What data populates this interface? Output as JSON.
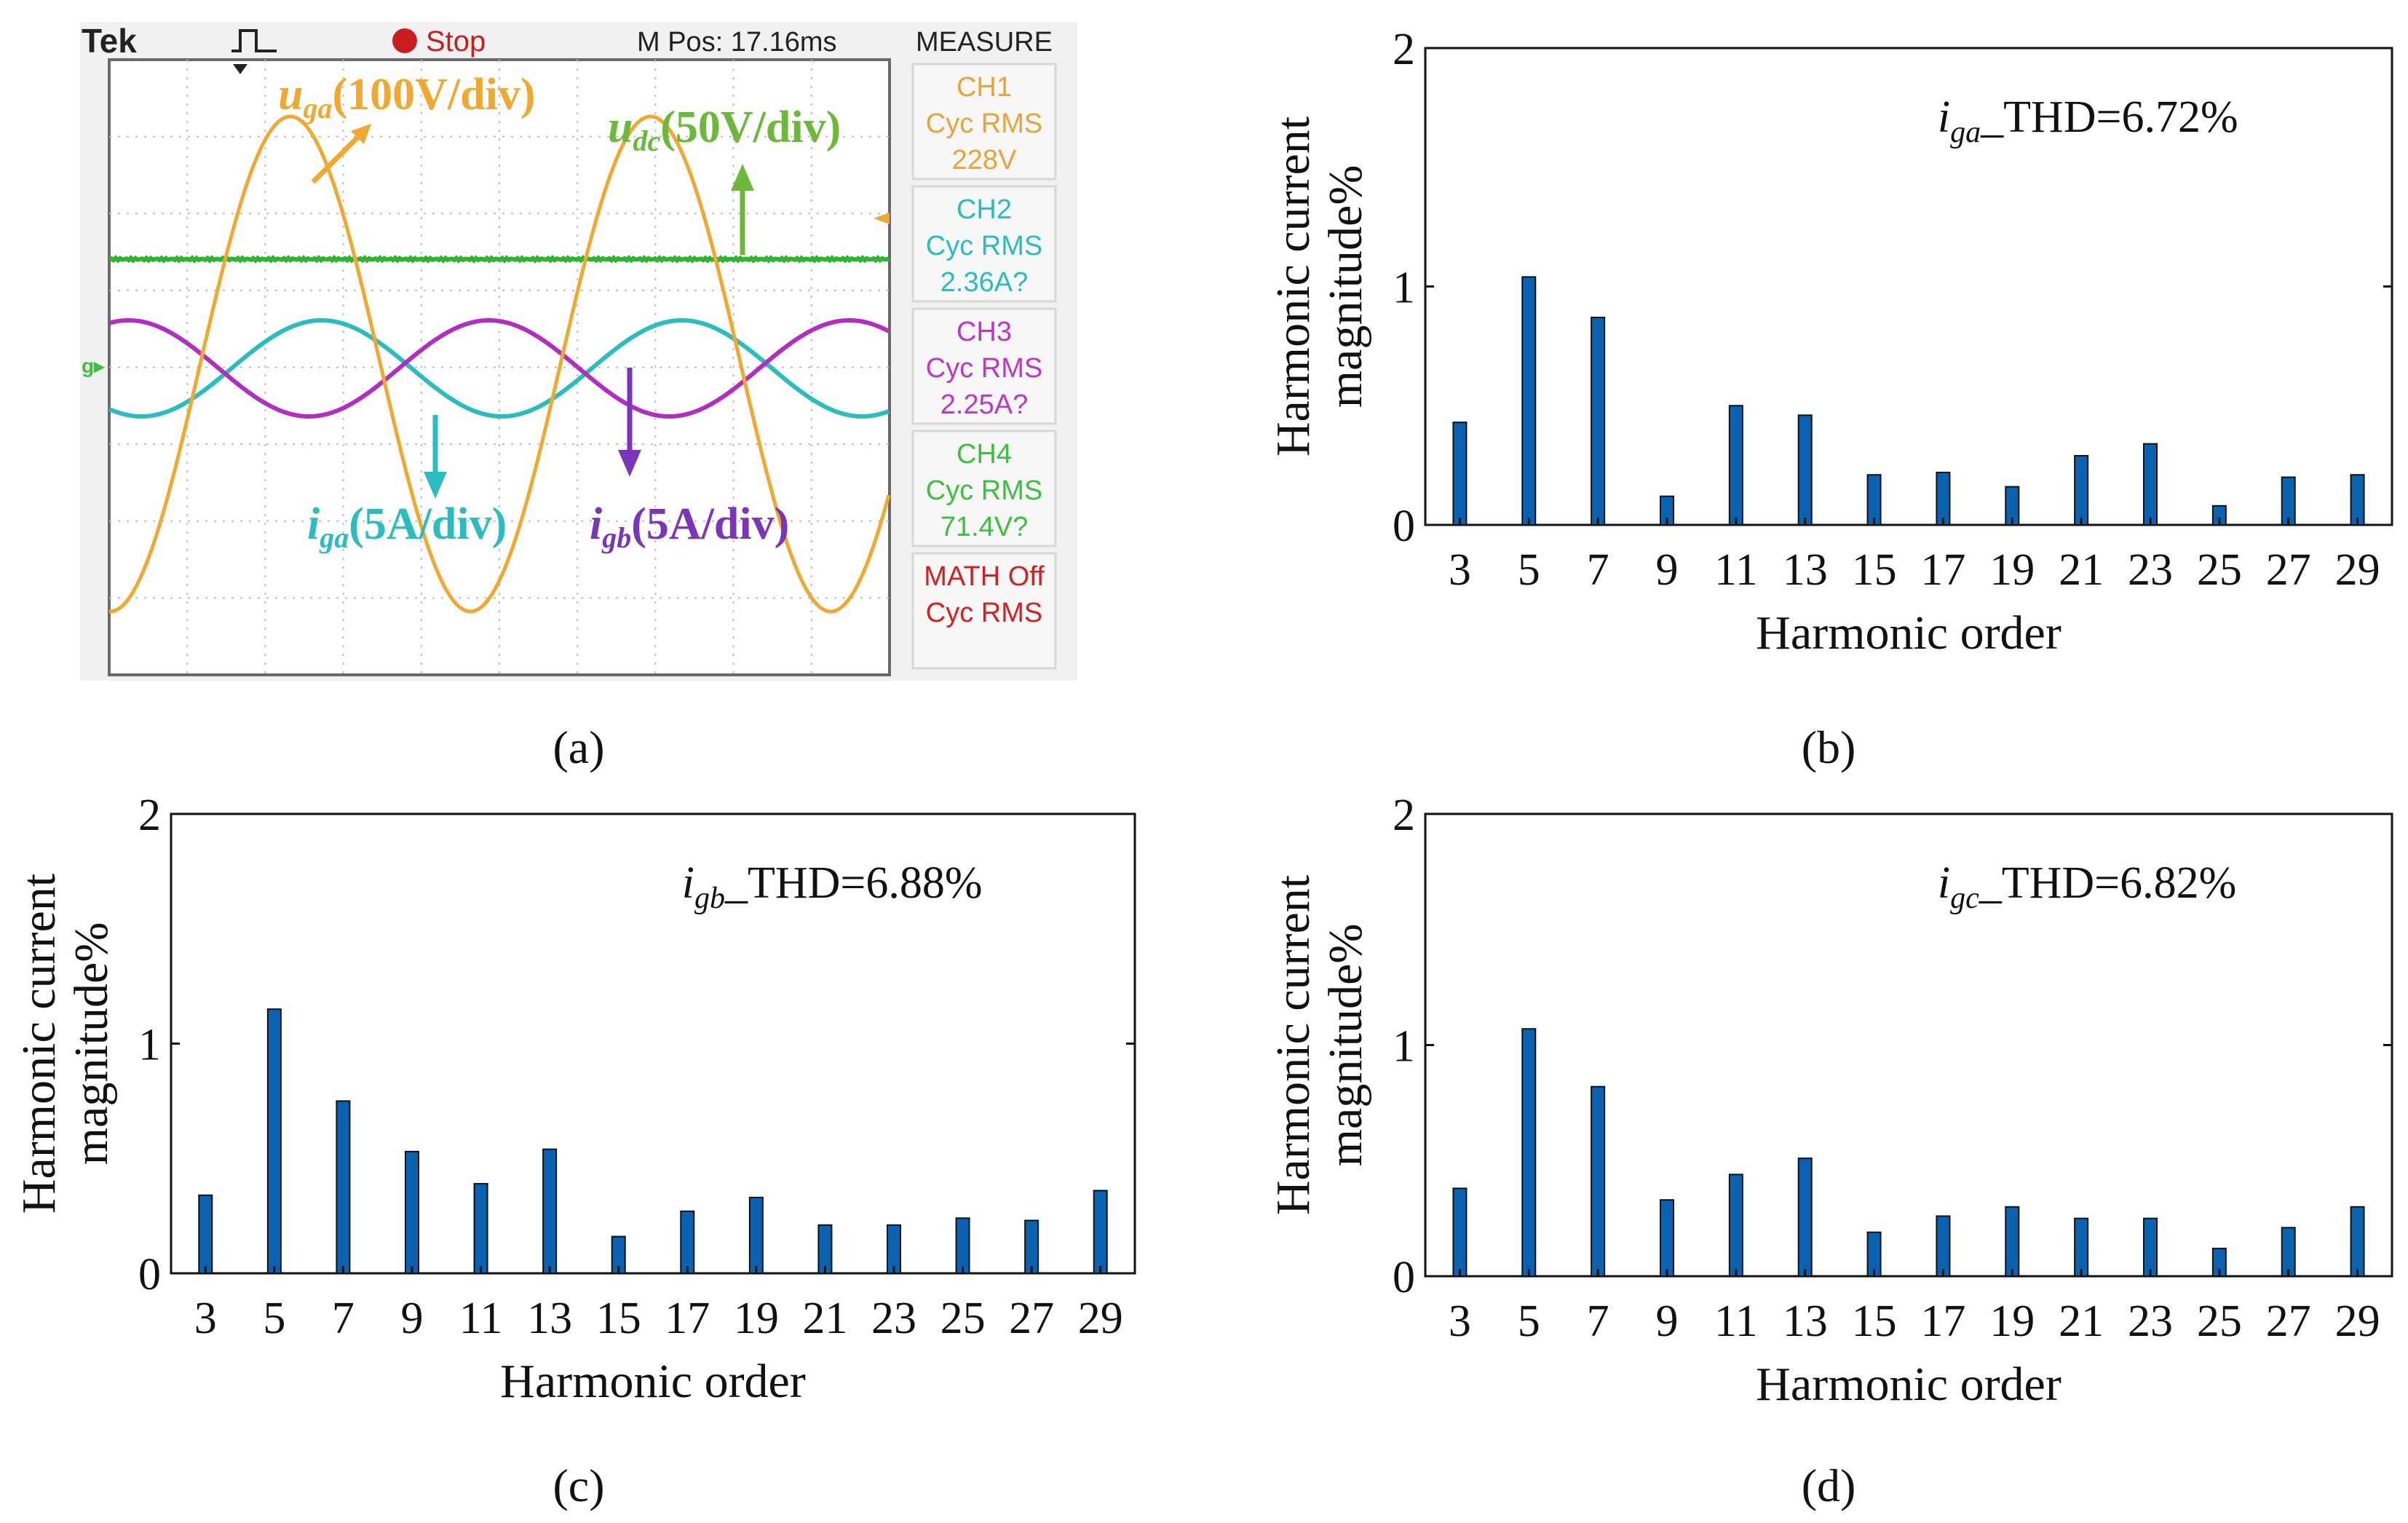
{
  "scope": {
    "brand": "Tek",
    "state": "Stop",
    "mpos": "M Pos: 17.16ms",
    "measure_title": "MEASURE",
    "measure": [
      {
        "ch": "CH1",
        "label": "Cyc RMS",
        "value": "228V",
        "color": "#e8a33a"
      },
      {
        "ch": "CH2",
        "label": "Cyc RMS",
        "value": "2.36A?",
        "color": "#2bbcc0"
      },
      {
        "ch": "CH3",
        "label": "Cyc RMS",
        "value": "2.25A?",
        "color": "#c035c8"
      },
      {
        "ch": "CH4",
        "label": "Cyc RMS",
        "value": "71.4V?",
        "color": "#3fbf3f"
      },
      {
        "ch": "MATH Off",
        "label": "Cyc RMS",
        "value": "",
        "color": "#d42020"
      }
    ],
    "annot": {
      "uga": {
        "sym": "u",
        "sub": "ga",
        "rest": "(100V/div)",
        "color": "#f0a830"
      },
      "udc": {
        "sym": "u",
        "sub": "dc",
        "rest": "(50V/div)",
        "color": "#6cb83a"
      },
      "iga": {
        "sym": "i",
        "sub": "ga",
        "rest": "(5A/div)",
        "color": "#2bbcc0"
      },
      "igb": {
        "sym": "i",
        "sub": "gb",
        "rest": "(5A/div)",
        "color": "#7a35b8"
      }
    },
    "colors": {
      "uga": "#f0a830",
      "udc": "#2db52d",
      "iga": "#2bbcc0",
      "igb": "#b22ec0"
    }
  },
  "panel_labels": {
    "a": "(a)",
    "b": "(b)",
    "c": "(c)",
    "d": "(d)"
  },
  "chart_data": [
    {
      "id": "b",
      "type": "bar",
      "annotation": {
        "sym": "i",
        "sub": "ga",
        "rest": "_THD=6.72%"
      },
      "ylabel": [
        "Harmonic current",
        "magnitude%"
      ],
      "xlabel": "Harmonic order",
      "categories": [
        "3",
        "5",
        "7",
        "9",
        "11",
        "13",
        "15",
        "17",
        "19",
        "21",
        "23",
        "25",
        "27",
        "29"
      ],
      "values": [
        0.43,
        1.04,
        0.87,
        0.12,
        0.5,
        0.46,
        0.21,
        0.22,
        0.16,
        0.29,
        0.34,
        0.08,
        0.2,
        0.21
      ],
      "ylim": [
        0,
        2
      ],
      "yticks": [
        "0",
        "1",
        "2"
      ],
      "bar_color": "#0a62b0"
    },
    {
      "id": "c",
      "type": "bar",
      "annotation": {
        "sym": "i",
        "sub": "gb",
        "rest": "_THD=6.88%"
      },
      "ylabel": [
        "Harmonic current",
        "magnitude%"
      ],
      "xlabel": "Harmonic order",
      "categories": [
        "3",
        "5",
        "7",
        "9",
        "11",
        "13",
        "15",
        "17",
        "19",
        "21",
        "23",
        "25",
        "27",
        "29"
      ],
      "values": [
        0.34,
        1.15,
        0.75,
        0.53,
        0.39,
        0.54,
        0.16,
        0.27,
        0.33,
        0.21,
        0.21,
        0.24,
        0.23,
        0.36
      ],
      "ylim": [
        0,
        2
      ],
      "yticks": [
        "0",
        "1",
        "2"
      ],
      "bar_color": "#0a62b0"
    },
    {
      "id": "d",
      "type": "bar",
      "annotation": {
        "sym": "i",
        "sub": "gc",
        "rest": "_THD=6.82%"
      },
      "ylabel": [
        "Harmonic current",
        "magnitude%"
      ],
      "xlabel": "Harmonic order",
      "categories": [
        "3",
        "5",
        "7",
        "9",
        "11",
        "13",
        "15",
        "17",
        "19",
        "21",
        "23",
        "25",
        "27",
        "29"
      ],
      "values": [
        0.38,
        1.07,
        0.82,
        0.33,
        0.44,
        0.51,
        0.19,
        0.26,
        0.3,
        0.25,
        0.25,
        0.12,
        0.21,
        0.3
      ],
      "ylim": [
        0,
        2
      ],
      "yticks": [
        "0",
        "1",
        "2"
      ],
      "bar_color": "#0a62b0"
    }
  ]
}
